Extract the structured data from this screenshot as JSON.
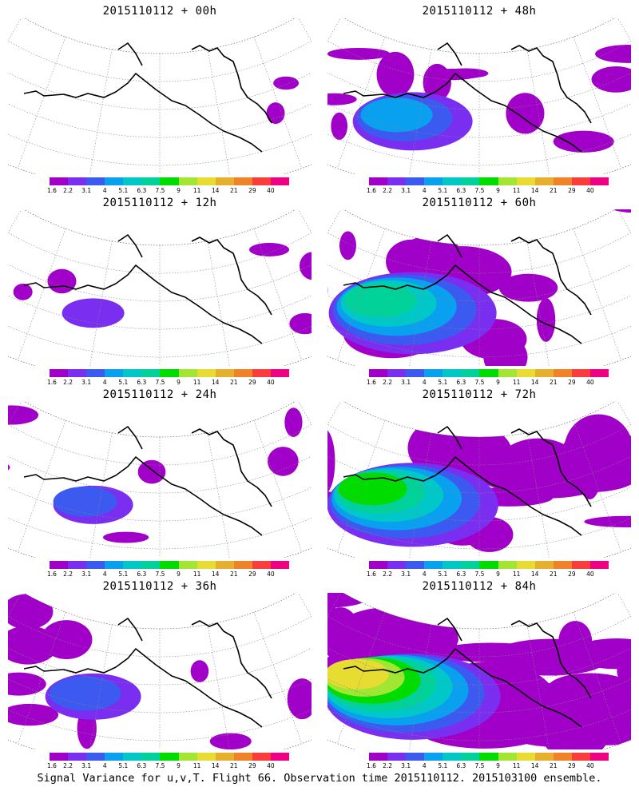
{
  "panels": [
    {
      "title": "2015110112 + 00h",
      "intensity": 0
    },
    {
      "title": "2015110112 + 48h",
      "intensity": 2
    },
    {
      "title": "2015110112 + 12h",
      "intensity": 0.6
    },
    {
      "title": "2015110112 + 60h",
      "intensity": 3
    },
    {
      "title": "2015110112 + 24h",
      "intensity": 1
    },
    {
      "title": "2015110112 + 72h",
      "intensity": 4
    },
    {
      "title": "2015110112 + 36h",
      "intensity": 1.5
    },
    {
      "title": "2015110112 + 84h",
      "intensity": 5
    }
  ],
  "colorbar": {
    "colors": [
      "#a000c8",
      "#7a2ef0",
      "#3c5af0",
      "#0aa0f0",
      "#00c8c8",
      "#00d29a",
      "#00dc00",
      "#a0e632",
      "#e6dc32",
      "#e6af2d",
      "#f08228",
      "#fa3c3c",
      "#f00082"
    ],
    "ticks": [
      "1.6",
      "2.2",
      "3.1",
      "4",
      "5.1",
      "6.3",
      "7.5",
      "9",
      "11",
      "14",
      "21",
      "29",
      "40"
    ]
  },
  "caption": "Signal Variance for u,v,T. Flight 66. Observation time 2015110112. 2015103100 ensemble."
}
